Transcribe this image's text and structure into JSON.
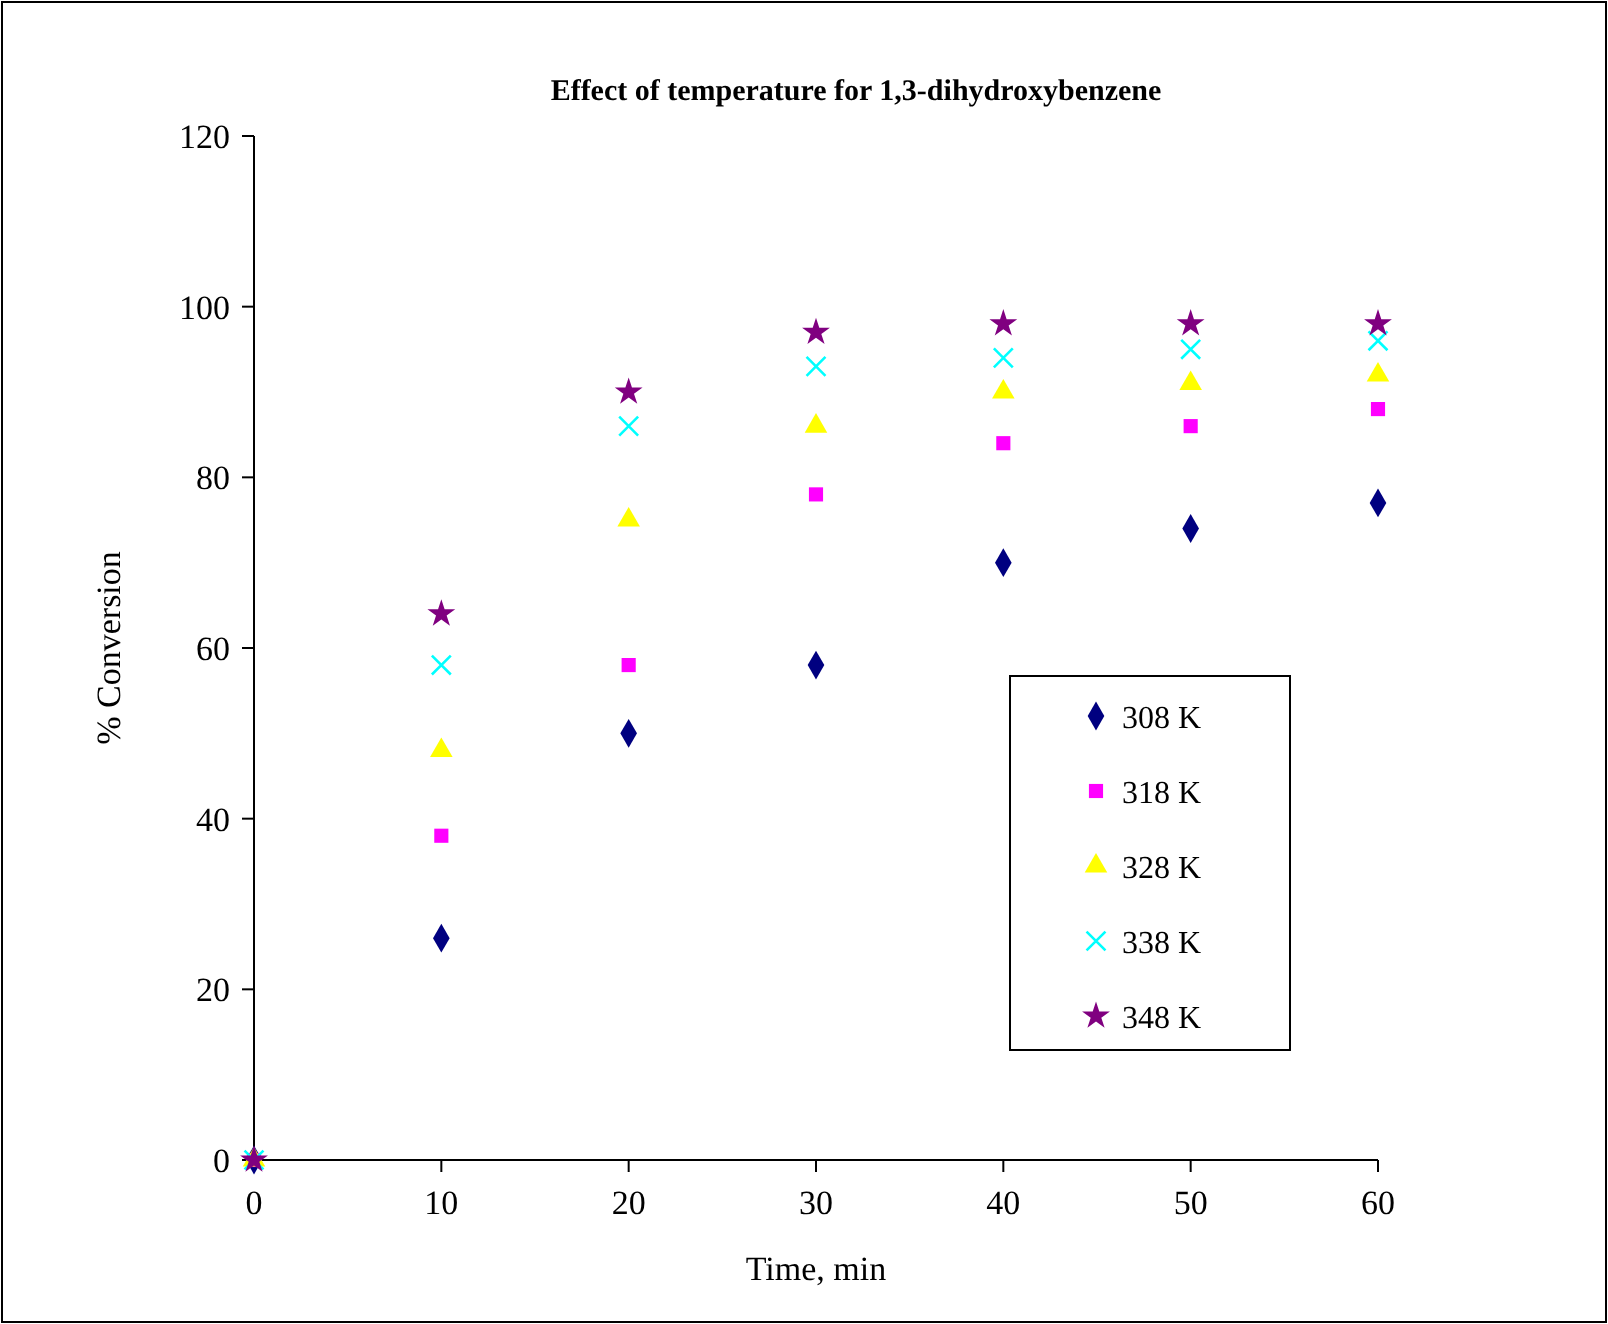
{
  "chart_data": {
    "type": "scatter",
    "title": "Effect of temperature for 1,3-dihydroxybenzene",
    "xlabel": "Time, min",
    "ylabel": "% Conversion",
    "x": [
      0,
      10,
      20,
      30,
      40,
      50,
      60
    ],
    "xlim": [
      0,
      60
    ],
    "xticks": [
      0,
      10,
      20,
      30,
      40,
      50,
      60
    ],
    "ylim": [
      0,
      120
    ],
    "yticks": [
      0,
      20,
      40,
      60,
      80,
      100,
      120
    ],
    "grid": false,
    "legend": "right",
    "series": [
      {
        "name": "308 K",
        "color": "#000080",
        "marker": "diamond",
        "values": [
          0,
          26,
          50,
          58,
          70,
          74,
          77
        ]
      },
      {
        "name": "318 K",
        "color": "#ff00ff",
        "marker": "square",
        "values": [
          0,
          38,
          58,
          78,
          84,
          86,
          88
        ]
      },
      {
        "name": "328 K",
        "color": "#ffff00",
        "marker": "triangle",
        "values": [
          0,
          48,
          75,
          86,
          90,
          91,
          92
        ]
      },
      {
        "name": "338 K",
        "color": "#00ffff",
        "marker": "cross",
        "values": [
          0,
          58,
          86,
          93,
          94,
          95,
          96
        ]
      },
      {
        "name": "348 K",
        "color": "#800080",
        "marker": "star",
        "values": [
          0,
          64,
          90,
          97,
          98,
          98,
          98
        ]
      }
    ]
  }
}
